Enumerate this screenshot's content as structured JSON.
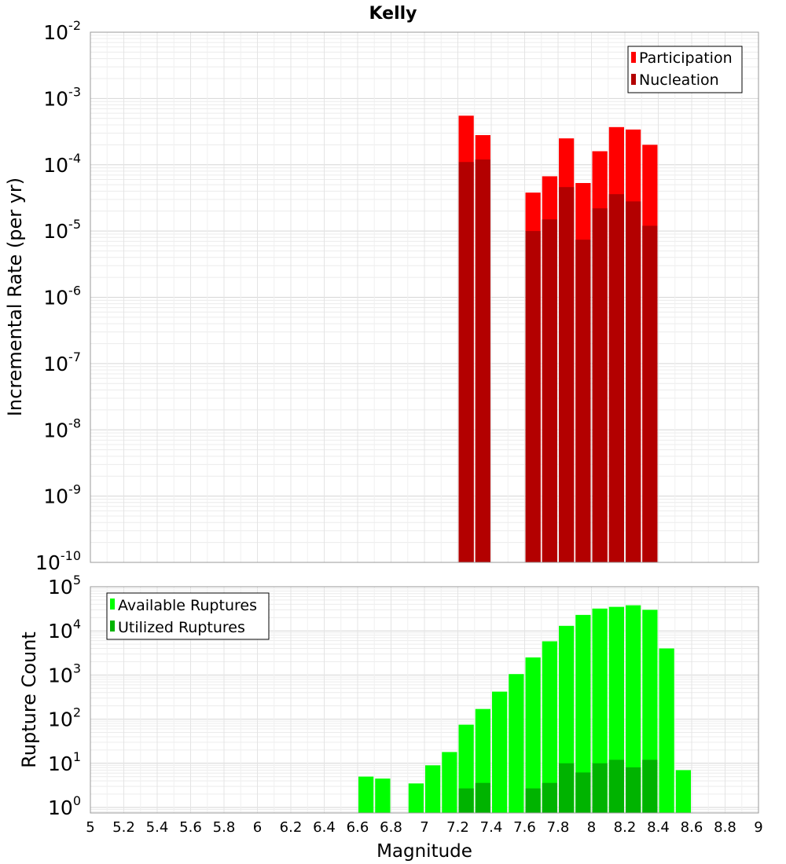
{
  "title": "Kelly",
  "xlabel": "Magnitude",
  "x_ticks": [
    "5",
    "5.2",
    "5.4",
    "5.6",
    "5.8",
    "6",
    "6.2",
    "6.4",
    "6.6",
    "6.8",
    "7",
    "7.2",
    "7.4",
    "7.6",
    "7.8",
    "8",
    "8.2",
    "8.4",
    "8.6",
    "8.8",
    "9"
  ],
  "chart_data": [
    {
      "type": "bar",
      "log_scale_y": true,
      "grid": true,
      "ylabel": "Incremental Rate (per yr)",
      "xlim": [
        5,
        9
      ],
      "ylim": [
        1e-10,
        0.01
      ],
      "y_ticks": [
        {
          "base": "10",
          "exp": "-2"
        },
        {
          "base": "10",
          "exp": "-3"
        },
        {
          "base": "10",
          "exp": "-4"
        },
        {
          "base": "10",
          "exp": "-5"
        },
        {
          "base": "10",
          "exp": "-6"
        },
        {
          "base": "10",
          "exp": "-7"
        },
        {
          "base": "10",
          "exp": "-8"
        },
        {
          "base": "10",
          "exp": "-9"
        },
        {
          "base": "10",
          "exp": "-10"
        }
      ],
      "bin_width": 0.1,
      "legend_position": "top-right",
      "legend": [
        "Participation",
        "Nucleation"
      ],
      "series": [
        {
          "name": "Participation",
          "color": "#ff0000",
          "points": [
            {
              "x": 7.25,
              "y": 0.00055
            },
            {
              "x": 7.35,
              "y": 0.00028
            },
            {
              "x": 7.65,
              "y": 3.8e-05
            },
            {
              "x": 7.75,
              "y": 6.7e-05
            },
            {
              "x": 7.85,
              "y": 0.00025
            },
            {
              "x": 7.95,
              "y": 5.3e-05
            },
            {
              "x": 8.05,
              "y": 0.00016
            },
            {
              "x": 8.15,
              "y": 0.00037
            },
            {
              "x": 8.25,
              "y": 0.00034
            },
            {
              "x": 8.35,
              "y": 0.0002
            }
          ]
        },
        {
          "name": "Nucleation",
          "color": "#b30000",
          "points": [
            {
              "x": 7.25,
              "y": 0.00011
            },
            {
              "x": 7.35,
              "y": 0.00012
            },
            {
              "x": 7.65,
              "y": 1e-05
            },
            {
              "x": 7.75,
              "y": 1.5e-05
            },
            {
              "x": 7.85,
              "y": 4.6e-05
            },
            {
              "x": 7.95,
              "y": 7.4e-06
            },
            {
              "x": 8.05,
              "y": 2.2e-05
            },
            {
              "x": 8.15,
              "y": 3.6e-05
            },
            {
              "x": 8.25,
              "y": 2.8e-05
            },
            {
              "x": 8.35,
              "y": 1.2e-05
            }
          ]
        }
      ]
    },
    {
      "type": "bar",
      "log_scale_y": true,
      "grid": true,
      "ylabel": "Rupture Count",
      "xlim": [
        5,
        9
      ],
      "ylim": [
        0.75,
        100000
      ],
      "y_ticks": [
        {
          "base": "10",
          "exp": "5"
        },
        {
          "base": "10",
          "exp": "4"
        },
        {
          "base": "10",
          "exp": "3"
        },
        {
          "base": "10",
          "exp": "2"
        },
        {
          "base": "10",
          "exp": "1"
        },
        {
          "base": "10",
          "exp": "0"
        }
      ],
      "bin_width": 0.1,
      "legend_position": "top-left",
      "legend": [
        "Available Ruptures",
        "Utilized Ruptures"
      ],
      "series": [
        {
          "name": "Available Ruptures",
          "color": "#00ff00",
          "points": [
            {
              "x": 6.65,
              "y": 5
            },
            {
              "x": 6.75,
              "y": 4.5
            },
            {
              "x": 6.95,
              "y": 3.5
            },
            {
              "x": 7.05,
              "y": 9
            },
            {
              "x": 7.15,
              "y": 18
            },
            {
              "x": 7.25,
              "y": 75
            },
            {
              "x": 7.35,
              "y": 170
            },
            {
              "x": 7.45,
              "y": 420
            },
            {
              "x": 7.55,
              "y": 1050
            },
            {
              "x": 7.65,
              "y": 2500
            },
            {
              "x": 7.75,
              "y": 5800
            },
            {
              "x": 7.85,
              "y": 13000
            },
            {
              "x": 7.95,
              "y": 23000
            },
            {
              "x": 8.05,
              "y": 32000
            },
            {
              "x": 8.15,
              "y": 35000
            },
            {
              "x": 8.25,
              "y": 38000
            },
            {
              "x": 8.35,
              "y": 30000
            },
            {
              "x": 8.45,
              "y": 4000
            },
            {
              "x": 8.55,
              "y": 7
            }
          ]
        },
        {
          "name": "Utilized Ruptures",
          "color": "#00b300",
          "points": [
            {
              "x": 7.25,
              "y": 2.7
            },
            {
              "x": 7.35,
              "y": 3.6
            },
            {
              "x": 7.65,
              "y": 2.7
            },
            {
              "x": 7.75,
              "y": 3.6
            },
            {
              "x": 7.85,
              "y": 10
            },
            {
              "x": 7.95,
              "y": 6.2
            },
            {
              "x": 8.05,
              "y": 10
            },
            {
              "x": 8.15,
              "y": 12
            },
            {
              "x": 8.25,
              "y": 8.1
            },
            {
              "x": 8.35,
              "y": 12
            }
          ]
        }
      ]
    }
  ]
}
